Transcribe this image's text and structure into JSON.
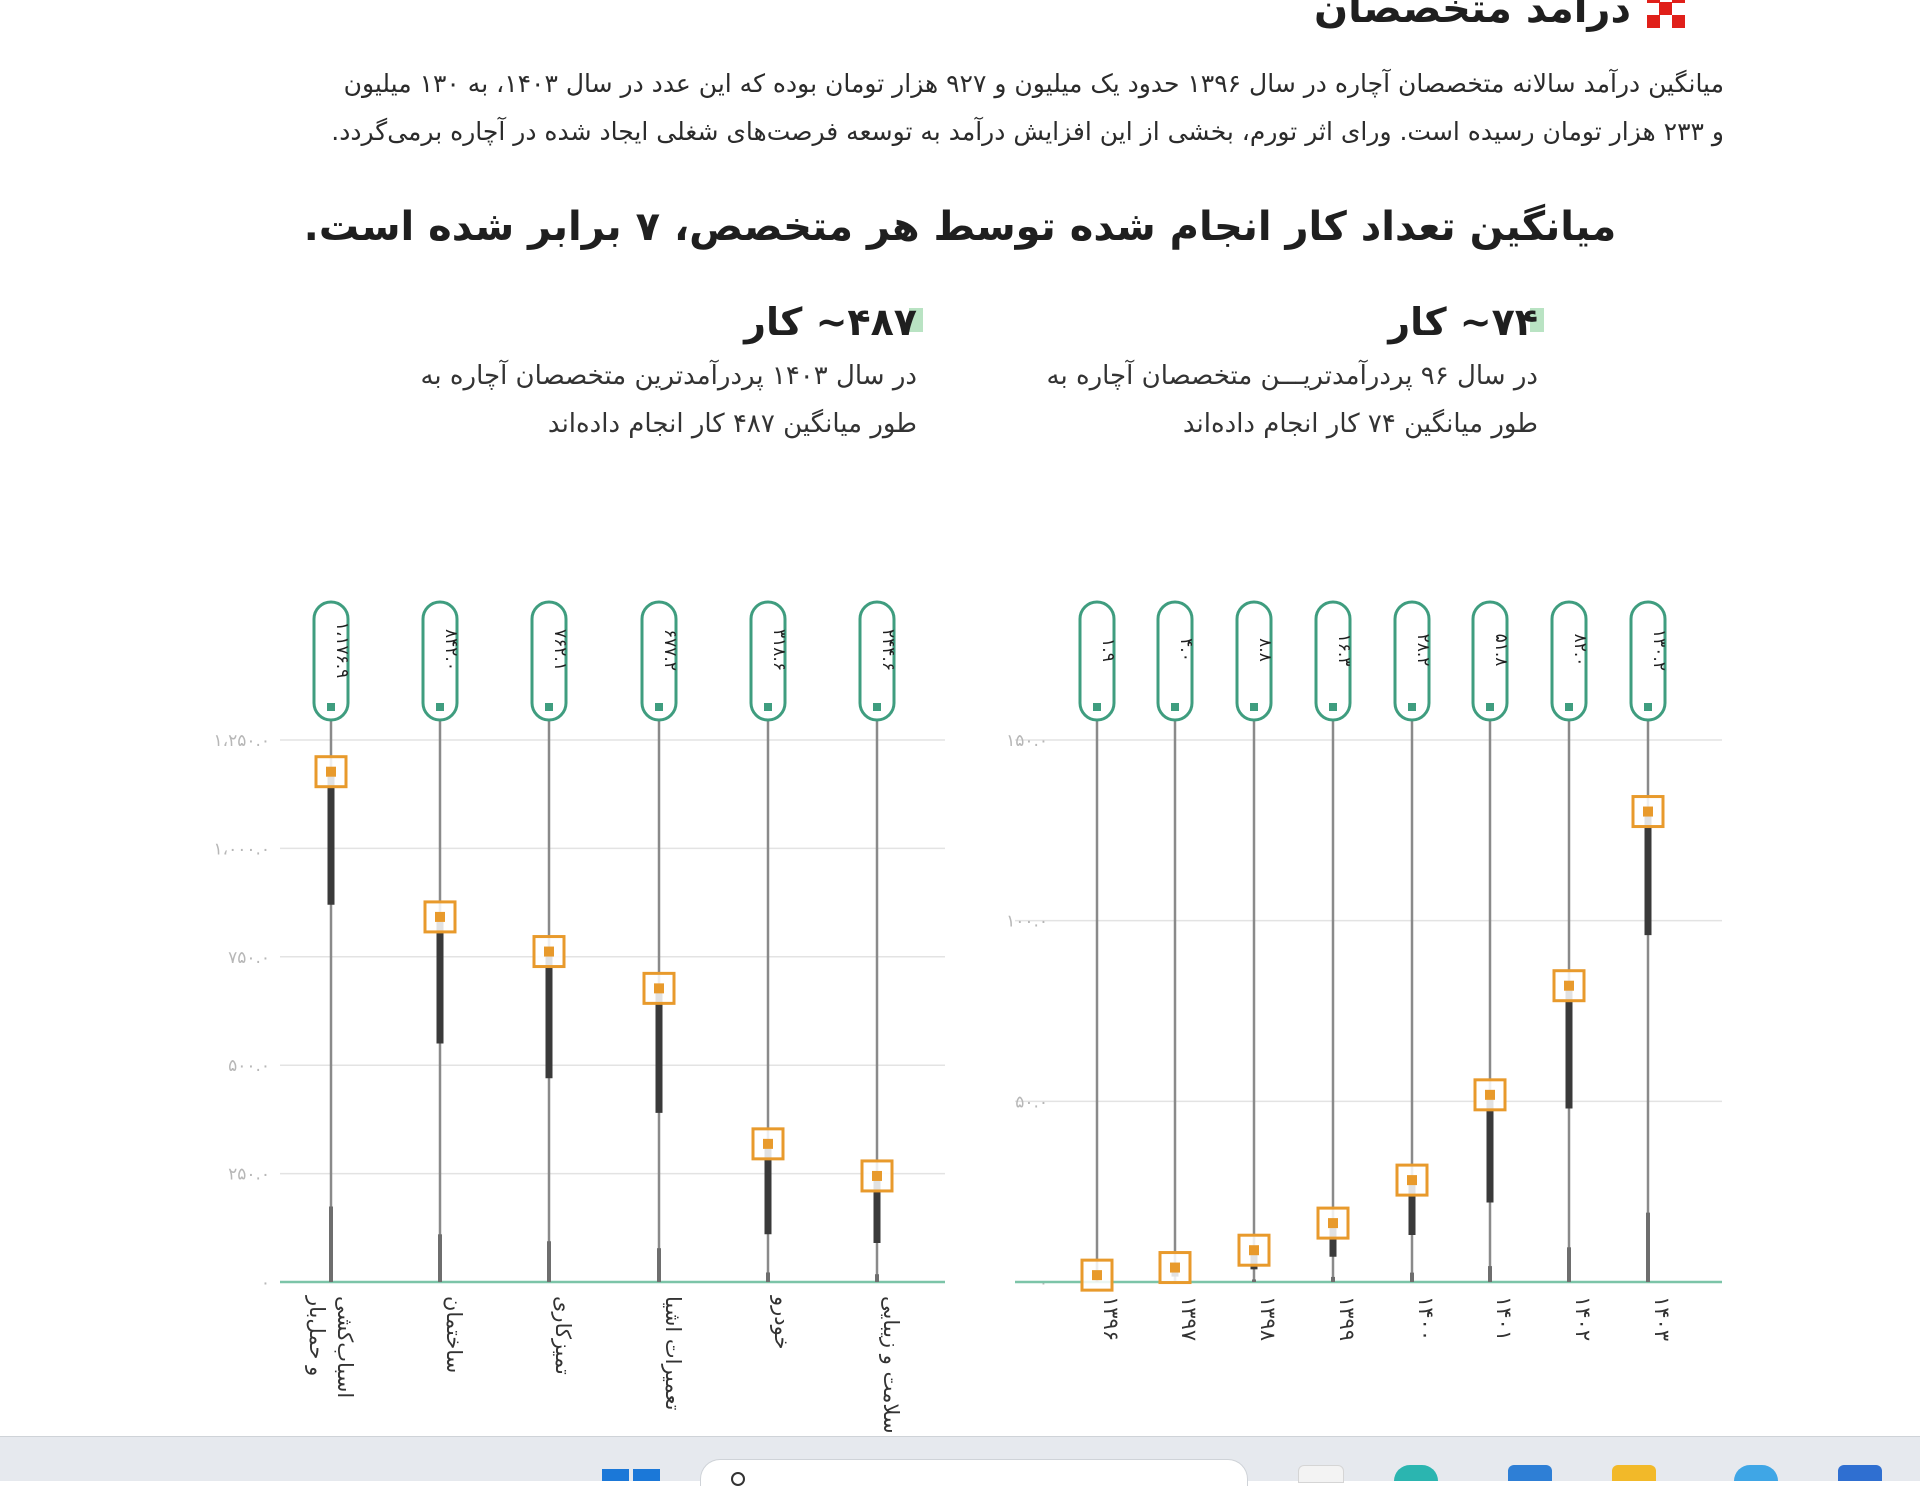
{
  "section": {
    "title": "درآمد متخصصان",
    "icon": "red-cross-icon",
    "accent": "#e0201a"
  },
  "intro_lines": [
    "میانگین درآمد سالانه متخصصان آچاره در سال ۱۳۹۶ حدود یک میلیون و ۹۲۷ هزار تومان بوده که این عدد در سال ۱۴۰۳، به ۱۳۰ میلیون",
    "و ۲۳۳ هزار تومان رسیده است. ورای اثر تورم، بخشی از این افزایش درآمد به توسعه فرصت‌های شغلی ایجاد شده در آچاره برمی‌گردد."
  ],
  "headline": "میانگین تعداد کار انجام شده توسط هر متخصص،  ۷ برابر شده است.",
  "kpis": [
    {
      "value": "۷۴~ کار",
      "desc_lines": [
        "در سال ۹۶ پردرآمدتریـــن متخصصان آچاره به",
        "طور میانگین ۷۴ کار انجام داده‌اند"
      ]
    },
    {
      "value": "۴۸۷~ کار",
      "desc_lines": [
        "در سال ۱۴۰۳ پردرآمدترین متخصصان آچاره به",
        "طور میانگین ۴۸۷ کار انجام داده‌اند"
      ]
    }
  ],
  "colors": {
    "marker": "#e89a2c",
    "pill": "#3f9d7f",
    "axis": "#7cc4a8",
    "grid": "#e3e3e3",
    "whisker": "#3a3a3a",
    "stem": "#8a8a8a",
    "tick": "#b7b7b7"
  },
  "chart_data": [
    {
      "type": "dot-range",
      "categories": [
        "۱۳۹۶",
        "۱۳۹۷",
        "۱۳۹۸",
        "۱۳۹۹",
        "۱۴۰۰",
        "۱۴۰۱",
        "۱۴۰۲",
        "۱۴۰۳"
      ],
      "values": [
        1.9,
        4.0,
        8.8,
        16.3,
        28.2,
        51.8,
        82.0,
        130.2
      ],
      "value_labels": [
        "۱.۹",
        "۴.۰",
        "۸.۸",
        "۱۶.۳",
        "۲۸.۲",
        "۵۱.۸",
        "۸۲.۰",
        "۱۳۰.۲"
      ],
      "range_low": [
        0.5,
        1.5,
        3.5,
        7,
        13,
        22,
        48,
        96
      ],
      "yticks": [
        0,
        50,
        100,
        150
      ],
      "ytick_labels": [
        "۰",
        "۵۰.۰",
        "۱۰۰.۰",
        "۱۵۰.۰"
      ],
      "ylim": [
        0,
        150
      ],
      "grid": true
    },
    {
      "type": "dot-range",
      "categories": [
        [
          "اسباب‌کشی",
          "و حمل‌بار"
        ],
        [
          "ساختمان"
        ],
        [
          "تمیزکاری"
        ],
        [
          "تعمیرات اشیا"
        ],
        [
          "خودرو"
        ],
        [
          "سلامت و زیبایی"
        ]
      ],
      "values": [
        1176.9,
        842.0,
        762.1,
        677.2,
        318.6,
        244.6
      ],
      "value_labels": [
        "۱،۱۷۶.۹",
        "۸۴۲.۰",
        "۷۶۲.۱",
        "۶۷۷.۲",
        "۳۱۸.۶",
        "۲۴۴.۶"
      ],
      "range_low": [
        870,
        550,
        470,
        390,
        110,
        90
      ],
      "yticks": [
        0,
        250,
        500,
        750,
        1000,
        1250
      ],
      "ytick_labels": [
        "۰",
        "۲۵۰.۰",
        "۵۰۰.۰",
        "۷۵۰.۰",
        "۱،۰۰۰.۰",
        "۱،۲۵۰.۰"
      ],
      "ylim": [
        0,
        1250
      ],
      "grid": true
    }
  ],
  "taskbar": {
    "search_icon": "search-icon",
    "start_icon": "windows-start-icon",
    "apps": [
      "app-icon-1",
      "app-icon-2",
      "app-icon-3",
      "folder-icon",
      "app-icon-5",
      "app-icon-6"
    ]
  }
}
